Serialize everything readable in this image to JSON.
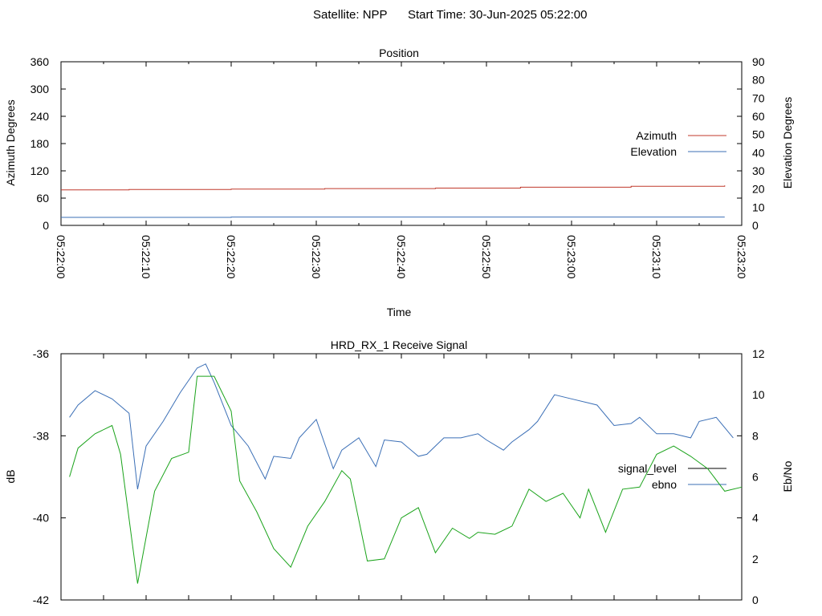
{
  "header": {
    "satellite_label": "Satellite: NPP",
    "start_time_label": "Start Time: 30-Jun-2025 05:22:00"
  },
  "chart_data": [
    {
      "type": "line",
      "title": "Position",
      "xlabel": "Time",
      "ylabel": "Azimuth Degrees",
      "y2label": "Elevation Degrees",
      "x_ticks": [
        "05:22:00",
        "05:22:10",
        "05:22:20",
        "05:22:30",
        "05:22:40",
        "05:22:50",
        "05:23:00",
        "05:23:10",
        "05:23:20"
      ],
      "xlim_seconds": [
        0,
        80
      ],
      "ylim": [
        0,
        360
      ],
      "y_ticks": [
        0,
        60,
        120,
        180,
        240,
        300,
        360
      ],
      "y2lim": [
        0,
        90
      ],
      "y2_ticks": [
        0,
        10,
        20,
        30,
        40,
        50,
        60,
        70,
        80,
        90
      ],
      "legend_position": "right",
      "grid": false,
      "x_seconds": [
        0,
        8,
        8,
        20,
        20,
        31,
        31,
        44,
        44,
        54,
        54,
        67,
        67,
        78,
        78
      ],
      "series": [
        {
          "name": "Azimuth",
          "axis": "y",
          "color": "#c0392b",
          "values": [
            78,
            78,
            79,
            79,
            80,
            80,
            81,
            81,
            82,
            82,
            84,
            84,
            86,
            86,
            88
          ]
        },
        {
          "name": "Elevation",
          "axis": "y2",
          "color": "#3b6fb6",
          "x_seconds": [
            0,
            20,
            20,
            78
          ],
          "values": [
            4.4,
            4.4,
            4.6,
            4.6
          ]
        }
      ]
    },
    {
      "type": "line",
      "title": "HRD_RX_1 Receive Signal",
      "xlabel": "",
      "ylabel": "dB",
      "y2label": "Eb/No",
      "ylim": [
        -42,
        -36
      ],
      "y_ticks": [
        -42,
        -40,
        -38,
        -36
      ],
      "y2lim": [
        0,
        12
      ],
      "y2_ticks": [
        0,
        2,
        4,
        6,
        8,
        10,
        12
      ],
      "xlim_seconds": [
        0,
        80
      ],
      "legend_position": "right",
      "grid": false,
      "series": [
        {
          "name": "signal_level",
          "axis": "y",
          "color": "#000000",
          "x_seconds": [],
          "values": []
        },
        {
          "name": "ebno",
          "axis": "y2",
          "color": "#3b6fb6",
          "x_seconds": [
            1.0,
            2.0,
            4.0,
            6.0,
            8.0,
            9.0,
            10.0,
            12.0,
            14.0,
            16.0,
            17.0,
            18.0,
            20.0,
            22.0,
            24.0,
            25.0,
            27.0,
            28.0,
            30.0,
            32.0,
            33.0,
            35.0,
            37.0,
            38.0,
            40.0,
            42.0,
            43.0,
            45.0,
            47.0,
            49.0,
            50.0,
            52.0,
            53.0,
            55.0,
            56.0,
            58.0,
            60.0,
            62.0,
            63.0,
            65.0,
            67.0,
            68.0,
            70.0,
            72.0,
            74.0,
            75.0,
            77.0,
            79.0
          ],
          "values": [
            8.9,
            9.5,
            10.2,
            9.8,
            9.1,
            5.4,
            7.5,
            8.7,
            10.1,
            11.3,
            11.5,
            10.6,
            8.5,
            7.5,
            5.9,
            7.0,
            6.9,
            7.9,
            8.8,
            6.4,
            7.3,
            7.9,
            6.5,
            7.8,
            7.7,
            7.0,
            7.1,
            7.9,
            7.9,
            8.1,
            7.8,
            7.3,
            7.7,
            8.3,
            8.7,
            10.0,
            9.8,
            9.6,
            9.5,
            8.5,
            8.6,
            8.9,
            8.1,
            8.1,
            7.9,
            8.7,
            8.9,
            7.9
          ]
        },
        {
          "name": "",
          "axis": "y2",
          "color": "#1aa31a",
          "x_seconds": [
            1.0,
            2.0,
            4.0,
            6.0,
            7.0,
            9.0,
            11.0,
            13.0,
            15.0,
            16.0,
            18.0,
            20.0,
            21.0,
            23.0,
            25.0,
            27.0,
            29.0,
            31.0,
            33.0,
            34.0,
            36.0,
            38.0,
            40.0,
            42.0,
            44.0,
            46.0,
            48.0,
            49.0,
            51.0,
            53.0,
            55.0,
            57.0,
            59.0,
            61.0,
            62.0,
            64.0,
            66.0,
            68.0,
            70.0,
            72.0,
            74.0,
            76.0,
            78.0,
            80.0
          ],
          "values": [
            6.0,
            7.4,
            8.1,
            8.5,
            7.1,
            0.8,
            5.3,
            6.9,
            7.2,
            10.9,
            10.9,
            9.2,
            5.8,
            4.3,
            2.5,
            1.6,
            3.6,
            4.8,
            6.3,
            5.9,
            1.9,
            2.0,
            4.0,
            4.5,
            2.3,
            3.5,
            3.0,
            3.3,
            3.2,
            3.6,
            5.4,
            4.8,
            5.2,
            4.0,
            5.4,
            3.3,
            5.4,
            5.5,
            7.1,
            7.5,
            7.0,
            6.4,
            5.3,
            5.5
          ]
        }
      ]
    }
  ]
}
